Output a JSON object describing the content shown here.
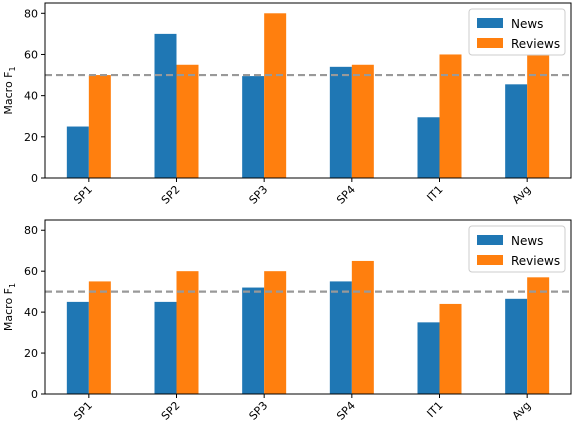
{
  "chart_data": [
    {
      "type": "bar",
      "categories": [
        "SP1",
        "SP2",
        "SP3",
        "SP4",
        "IT1",
        "Avg"
      ],
      "series": [
        {
          "name": "News",
          "values": [
            25,
            70,
            49.5,
            54,
            29.5,
            45.5
          ],
          "color": "#1f77b4"
        },
        {
          "name": "Reviews",
          "values": [
            50,
            55,
            80,
            55,
            60,
            60
          ],
          "color": "#ff7f0e"
        }
      ],
      "title": "",
      "xlabel": "",
      "ylabel": "Macro F",
      "ylabel_subscript": "1",
      "ylim": [
        0,
        85
      ],
      "yticks": [
        0,
        20,
        40,
        60,
        80
      ],
      "reference_line": {
        "value": 50,
        "color": "#999999",
        "style": "dashed"
      },
      "legend_position": "top-right",
      "grid": false
    },
    {
      "type": "bar",
      "categories": [
        "SP1",
        "SP2",
        "SP3",
        "SP4",
        "IT1",
        "Avg"
      ],
      "series": [
        {
          "name": "News",
          "values": [
            45,
            45,
            52,
            55,
            35,
            46.5
          ],
          "color": "#1f77b4"
        },
        {
          "name": "Reviews",
          "values": [
            55,
            60,
            60,
            65,
            44,
            57
          ],
          "color": "#ff7f0e"
        }
      ],
      "title": "",
      "xlabel": "",
      "ylabel": "Macro F",
      "ylabel_subscript": "1",
      "ylim": [
        0,
        85
      ],
      "yticks": [
        0,
        20,
        40,
        60,
        80
      ],
      "reference_line": {
        "value": 50,
        "color": "#999999",
        "style": "dashed"
      },
      "legend_position": "top-right",
      "grid": false
    }
  ]
}
